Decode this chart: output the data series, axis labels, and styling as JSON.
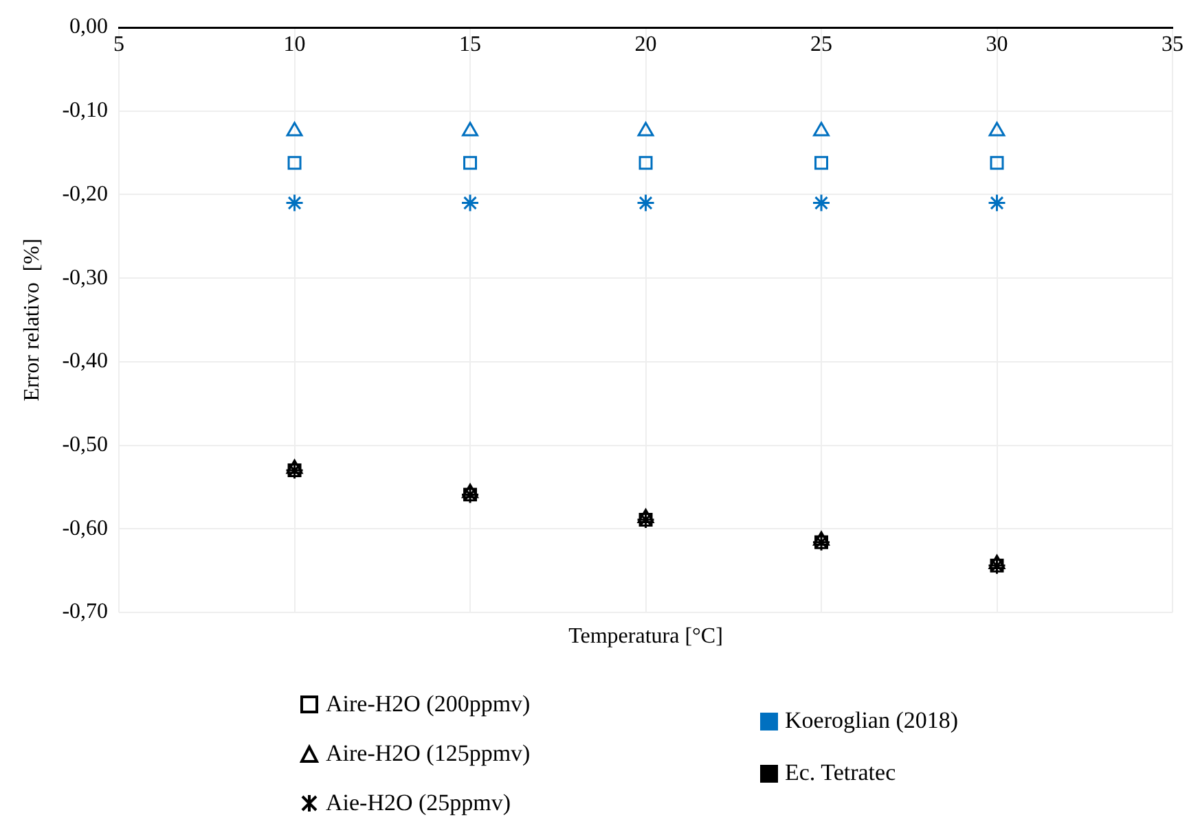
{
  "chart_data": {
    "type": "scatter",
    "xlabel": "Temperatura [°C]",
    "ylabel": "Error relativo  [%]",
    "x": [
      10,
      15,
      20,
      25,
      30
    ],
    "xlim": [
      5,
      35
    ],
    "xticks": [
      5,
      10,
      15,
      20,
      25,
      30,
      35
    ],
    "ylim": [
      -0.7,
      0
    ],
    "yticks": [
      {
        "value": 0,
        "label": "0,00"
      },
      {
        "value": -0.1,
        "label": "-0,10"
      },
      {
        "value": -0.2,
        "label": "-0,20"
      },
      {
        "value": -0.3,
        "label": "-0,30"
      },
      {
        "value": -0.4,
        "label": "-0,40"
      },
      {
        "value": -0.5,
        "label": "-0,50"
      },
      {
        "value": -0.6,
        "label": "-0,60"
      },
      {
        "value": -0.7,
        "label": "-0,70"
      }
    ],
    "grid": true,
    "legend": "bottom",
    "annotations": [
      "Koeroglian (2018)",
      "Ec. Tetratec"
    ],
    "series": [
      {
        "name": "Aire-H2O (200ppmv)",
        "marker": "square",
        "color": "#000000",
        "values": [
          -0.53,
          -0.559,
          -0.589,
          -0.616,
          -0.644
        ]
      },
      {
        "name": "Aire-H2O (125ppmv)",
        "marker": "triangle",
        "color": "#000000",
        "values": [
          -0.528,
          -0.557,
          -0.587,
          -0.614,
          -0.642
        ]
      },
      {
        "name": "Aie-H2O (25ppmv)",
        "marker": "cross",
        "color": "#000000",
        "values": [
          -0.53,
          -0.559,
          -0.589,
          -0.616,
          -0.644
        ]
      },
      {
        "marker": "square",
        "color": "#0070c0",
        "values": [
          -0.162,
          -0.162,
          -0.162,
          -0.162,
          -0.162
        ]
      },
      {
        "marker": "triangle",
        "color": "#0070c0",
        "values": [
          -0.124,
          -0.124,
          -0.124,
          -0.124,
          -0.124
        ]
      },
      {
        "marker": "cross",
        "color": "#0070c0",
        "values": [
          -0.21,
          -0.21,
          -0.21,
          -0.21,
          -0.21
        ]
      }
    ]
  }
}
